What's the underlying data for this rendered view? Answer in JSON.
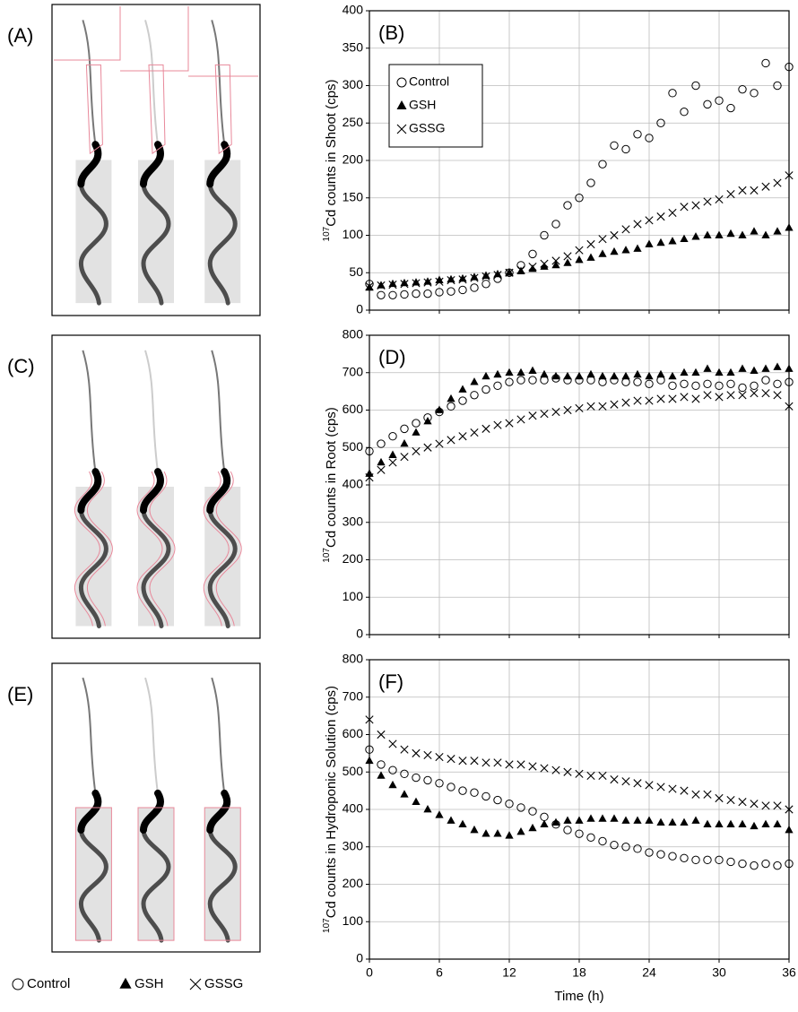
{
  "image_panels": [
    "(A)",
    "(C)",
    "(E)"
  ],
  "image_legend": [
    {
      "label": "Control",
      "marker": "circle"
    },
    {
      "label": "GSH",
      "marker": "triangle"
    },
    {
      "label": "GSSG",
      "marker": "x"
    }
  ],
  "chart_data": [
    {
      "type": "scatter",
      "panel_label": "(B)",
      "ylabel_isotope": "107",
      "ylabel": "Cd  counts in Shoot (cps)",
      "xlim": [
        0,
        36
      ],
      "xticks": [
        0,
        6,
        12,
        18,
        24,
        30,
        36
      ],
      "xtick_labels": false,
      "ylim": [
        0,
        400
      ],
      "yticks": [
        0,
        50,
        100,
        150,
        200,
        250,
        300,
        350,
        400
      ],
      "grid": true,
      "legend": "upper left",
      "x": [
        0,
        1,
        2,
        3,
        4,
        5,
        6,
        7,
        8,
        9,
        10,
        11,
        12,
        13,
        14,
        15,
        16,
        17,
        18,
        19,
        20,
        21,
        22,
        23,
        24,
        25,
        26,
        27,
        28,
        29,
        30,
        31,
        32,
        33,
        34,
        35,
        36
      ],
      "series": [
        {
          "name": "Control",
          "marker": "circle",
          "color": "#000000",
          "values": [
            35,
            20,
            20,
            21,
            22,
            22,
            24,
            25,
            27,
            30,
            35,
            42,
            50,
            60,
            75,
            100,
            115,
            140,
            150,
            170,
            195,
            220,
            215,
            235,
            230,
            250,
            290,
            265,
            300,
            275,
            280,
            270,
            295,
            290,
            330,
            300,
            325
          ]
        },
        {
          "name": "GSH",
          "marker": "triangle",
          "color": "#000000",
          "values": [
            30,
            33,
            35,
            36,
            37,
            38,
            40,
            41,
            42,
            44,
            46,
            48,
            50,
            52,
            55,
            58,
            60,
            63,
            67,
            70,
            75,
            78,
            80,
            82,
            88,
            90,
            92,
            95,
            98,
            100,
            100,
            102,
            100,
            105,
            100,
            105,
            110
          ]
        },
        {
          "name": "GSSG",
          "marker": "x",
          "color": "#000000",
          "values": [
            32,
            33,
            34,
            35,
            36,
            37,
            38,
            40,
            41,
            43,
            45,
            47,
            50,
            54,
            58,
            62,
            66,
            72,
            80,
            88,
            95,
            100,
            108,
            115,
            120,
            125,
            130,
            138,
            140,
            145,
            148,
            155,
            160,
            160,
            165,
            170,
            180
          ]
        }
      ]
    },
    {
      "type": "scatter",
      "panel_label": "(D)",
      "ylabel_isotope": "107",
      "ylabel": "Cd  counts in Root (cps)",
      "xlim": [
        0,
        36
      ],
      "xticks": [
        0,
        6,
        12,
        18,
        24,
        30,
        36
      ],
      "xtick_labels": false,
      "ylim": [
        0,
        800
      ],
      "yticks": [
        0,
        100,
        200,
        300,
        400,
        500,
        600,
        700,
        800
      ],
      "grid": true,
      "x": [
        0,
        1,
        2,
        3,
        4,
        5,
        6,
        7,
        8,
        9,
        10,
        11,
        12,
        13,
        14,
        15,
        16,
        17,
        18,
        19,
        20,
        21,
        22,
        23,
        24,
        25,
        26,
        27,
        28,
        29,
        30,
        31,
        32,
        33,
        34,
        35,
        36
      ],
      "series": [
        {
          "marker": "circle",
          "color": "#000000",
          "values": [
            490,
            510,
            530,
            550,
            565,
            580,
            595,
            610,
            625,
            640,
            655,
            665,
            675,
            680,
            680,
            680,
            685,
            680,
            680,
            680,
            675,
            680,
            675,
            675,
            670,
            680,
            665,
            670,
            665,
            670,
            665,
            670,
            660,
            665,
            680,
            670,
            675
          ]
        },
        {
          "marker": "triangle",
          "color": "#000000",
          "values": [
            430,
            460,
            480,
            510,
            540,
            570,
            600,
            630,
            655,
            675,
            690,
            695,
            700,
            700,
            705,
            695,
            690,
            690,
            690,
            695,
            690,
            690,
            690,
            695,
            690,
            695,
            690,
            700,
            700,
            710,
            700,
            700,
            710,
            705,
            710,
            715,
            710
          ]
        },
        {
          "marker": "x",
          "color": "#000000",
          "values": [
            420,
            440,
            460,
            475,
            490,
            500,
            510,
            520,
            530,
            540,
            550,
            560,
            565,
            575,
            585,
            590,
            595,
            600,
            605,
            610,
            610,
            615,
            620,
            625,
            625,
            630,
            630,
            635,
            630,
            640,
            635,
            640,
            640,
            645,
            645,
            640,
            610
          ]
        }
      ]
    },
    {
      "type": "scatter",
      "panel_label": "(F)",
      "ylabel_isotope": "107",
      "ylabel": "Cd  counts in Hydroponic Solution (cps)",
      "xlabel": "Time (h)",
      "xlim": [
        0,
        36
      ],
      "xticks": [
        0,
        6,
        12,
        18,
        24,
        30,
        36
      ],
      "xtick_labels": true,
      "ylim": [
        0,
        800
      ],
      "yticks": [
        0,
        100,
        200,
        300,
        400,
        500,
        600,
        700,
        800
      ],
      "grid": true,
      "x": [
        0,
        1,
        2,
        3,
        4,
        5,
        6,
        7,
        8,
        9,
        10,
        11,
        12,
        13,
        14,
        15,
        16,
        17,
        18,
        19,
        20,
        21,
        22,
        23,
        24,
        25,
        26,
        27,
        28,
        29,
        30,
        31,
        32,
        33,
        34,
        35,
        36
      ],
      "series": [
        {
          "marker": "circle",
          "color": "#000000",
          "values": [
            560,
            520,
            505,
            495,
            485,
            478,
            470,
            460,
            450,
            445,
            435,
            425,
            415,
            405,
            395,
            380,
            360,
            345,
            335,
            325,
            315,
            305,
            300,
            295,
            285,
            280,
            275,
            270,
            265,
            265,
            265,
            260,
            255,
            250,
            255,
            250,
            255
          ]
        },
        {
          "marker": "triangle",
          "color": "#000000",
          "values": [
            530,
            490,
            465,
            440,
            420,
            400,
            385,
            370,
            360,
            345,
            335,
            335,
            330,
            340,
            350,
            360,
            365,
            370,
            370,
            375,
            375,
            375,
            370,
            370,
            370,
            365,
            365,
            365,
            370,
            360,
            360,
            360,
            360,
            355,
            360,
            360,
            345
          ]
        },
        {
          "marker": "x",
          "color": "#000000",
          "values": [
            640,
            600,
            575,
            560,
            550,
            545,
            540,
            535,
            530,
            530,
            525,
            525,
            520,
            520,
            515,
            510,
            505,
            500,
            495,
            490,
            490,
            480,
            475,
            470,
            465,
            460,
            455,
            450,
            440,
            440,
            430,
            425,
            420,
            415,
            410,
            410,
            400
          ]
        }
      ]
    }
  ]
}
